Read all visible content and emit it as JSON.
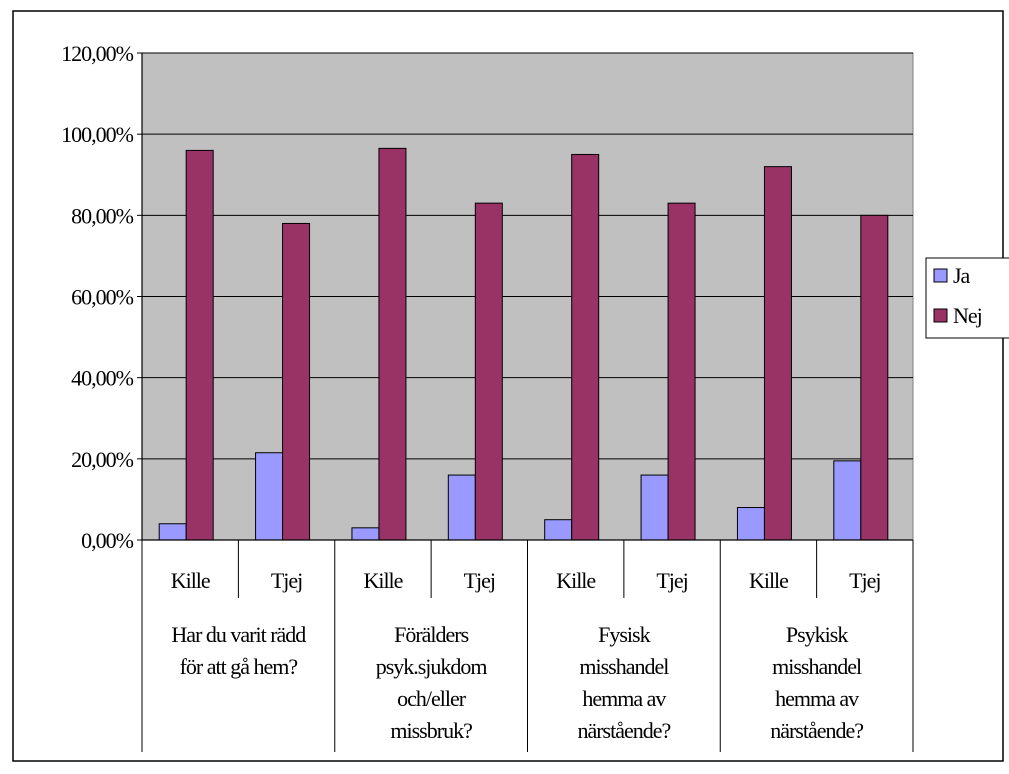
{
  "chart_data": {
    "type": "bar",
    "title": "",
    "xlabel": "",
    "ylabel": "",
    "ylim": [
      0,
      1.2
    ],
    "y_ticks": [
      "0,00%",
      "20,00%",
      "40,00%",
      "60,00%",
      "80,00%",
      "100,00%",
      "120,00%"
    ],
    "y_tick_values": [
      0,
      0.2,
      0.4,
      0.6,
      0.8,
      1.0,
      1.2
    ],
    "grid": true,
    "legend_position": "right",
    "groups": [
      {
        "label": [
          "Har du varit rädd",
          "för att gå hem?"
        ],
        "categories": [
          "Kille",
          "Tjej"
        ]
      },
      {
        "label": [
          "Förälders",
          "psyk.sjukdom",
          "och/eller",
          "missbruk?"
        ],
        "categories": [
          "Kille",
          "Tjej"
        ]
      },
      {
        "label": [
          "Fysisk",
          "misshandel",
          "hemma av",
          "närstående?"
        ],
        "categories": [
          "Kille",
          "Tjej"
        ]
      },
      {
        "label": [
          "Psykisk",
          "misshandel",
          "hemma av",
          "närstående?"
        ],
        "categories": [
          "Kille",
          "Tjej"
        ]
      }
    ],
    "series": [
      {
        "name": "Ja",
        "color": "#9999ff",
        "values": [
          0.04,
          0.215,
          0.03,
          0.16,
          0.05,
          0.16,
          0.08,
          0.195
        ]
      },
      {
        "name": "Nej",
        "color": "#993366",
        "values": [
          0.96,
          0.78,
          0.965,
          0.83,
          0.95,
          0.83,
          0.92,
          0.8
        ]
      }
    ],
    "plot_background": "#c0c0c0"
  }
}
